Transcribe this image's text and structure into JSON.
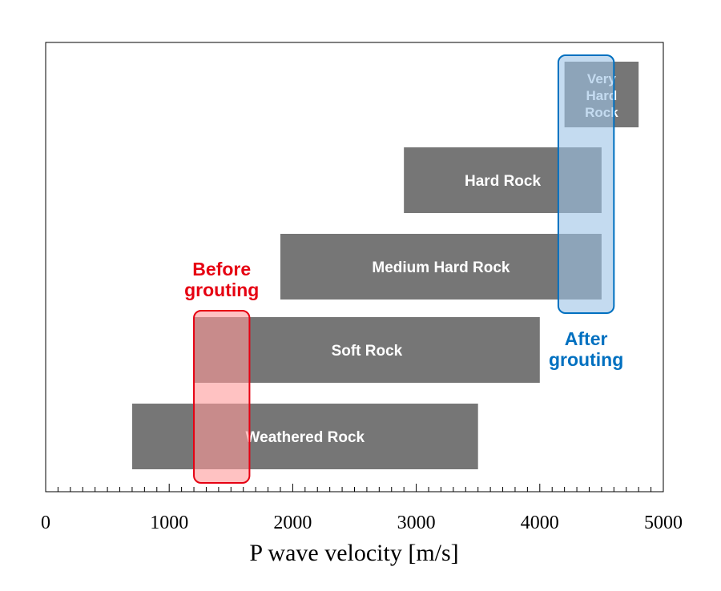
{
  "chart_data": {
    "type": "bar",
    "orientation": "horizontal-range",
    "xlabel": "P wave velocity [m/s]",
    "xlim": [
      0,
      5000
    ],
    "xticks": [
      0,
      1000,
      2000,
      3000,
      4000,
      5000
    ],
    "minor_tick_step": 100,
    "grid": false,
    "bar_color": "#767676",
    "categories": [
      "Weathered Rock",
      "Soft Rock",
      "Medium Hard Rock",
      "Hard Rock",
      "Very Hard Rock"
    ],
    "bars": [
      {
        "label": "Weathered Rock",
        "label_lines": [
          "Weathered Rock"
        ],
        "start": 700,
        "end": 3500
      },
      {
        "label": "Soft Rock",
        "label_lines": [
          "Soft Rock"
        ],
        "start": 1200,
        "end": 4000
      },
      {
        "label": "Medium Hard Rock",
        "label_lines": [
          "Medium Hard Rock"
        ],
        "start": 1900,
        "end": 4500
      },
      {
        "label": "Hard Rock",
        "label_lines": [
          "Hard Rock"
        ],
        "start": 2900,
        "end": 4500
      },
      {
        "label": "Very Hard Rock",
        "label_lines": [
          "Very",
          "Hard",
          "Rock"
        ],
        "start": 4200,
        "end": 4800
      }
    ],
    "annotations": [
      {
        "text": "Before grouting",
        "text_lines": [
          "Before",
          "grouting"
        ],
        "color": "#e60012",
        "fill": "#ff9999",
        "x_range": [
          1200,
          1650
        ],
        "category_span": [
          "Weathered Rock",
          "Soft Rock"
        ],
        "text_position": "above"
      },
      {
        "text": "After grouting",
        "text_lines": [
          "After",
          "grouting"
        ],
        "color": "#0070c0",
        "fill": "#9dc3e6",
        "x_range": [
          4150,
          4600
        ],
        "category_span": [
          "Medium Hard Rock",
          "Very Hard Rock"
        ],
        "text_position": "below"
      }
    ]
  }
}
